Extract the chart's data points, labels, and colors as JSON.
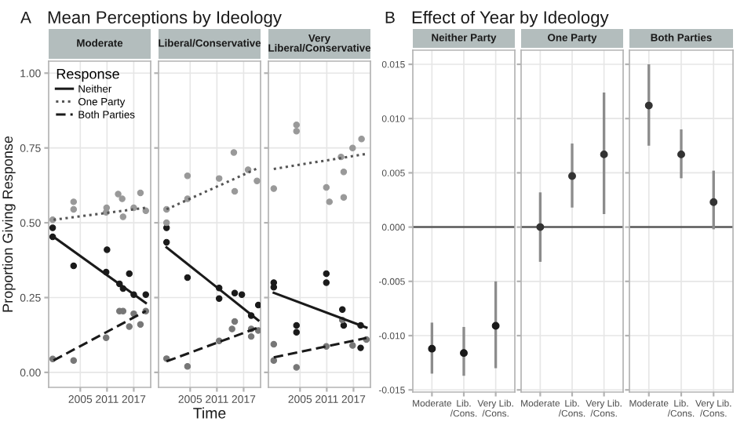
{
  "chart_data": [
    {
      "type": "scatter",
      "title": "Moderate",
      "annotations": [
        "A",
        "Mean Perceptions by Ideology"
      ],
      "ylabel": "Proportion Giving Response",
      "legend": "top left",
      "legend_title": "Response",
      "xlim": [
        1997.9,
        2020.8
      ],
      "ylim": [
        -0.05,
        1.04
      ],
      "xticks": [
        2005,
        2011,
        2017
      ],
      "yticks": [
        {
          "value": 0,
          "label": "0.00"
        },
        {
          "value": 0.25,
          "label": "0.25"
        },
        {
          "value": 0.5,
          "label": "0.50"
        },
        {
          "value": 0.75,
          "label": "0.75"
        },
        {
          "value": 1,
          "label": "1.00"
        }
      ],
      "grid": true,
      "series": [
        {
          "type": "scatter",
          "marker": "circle",
          "color": "#1a1a1a",
          "x": [
            1998.8,
            1998.8,
            2003.5,
            2011,
            2010.8,
            2013.8,
            2016,
            2017,
            2019.7,
            2014.6
          ],
          "values": [
            0.483,
            0.453,
            0.356,
            0.41,
            0.335,
            0.296,
            0.33,
            0.26,
            0.26,
            0.28
          ]
        },
        {
          "type": "scatter",
          "marker": "circle",
          "color": "#999999",
          "x": [
            2003.5,
            2003.5,
            2013.5,
            2014.4,
            2018.5,
            2010.9,
            2014.6,
            2010.8,
            2017,
            2019.7,
            1998.8
          ],
          "values": [
            0.57,
            0.545,
            0.596,
            0.58,
            0.6,
            0.55,
            0.52,
            0.535,
            0.55,
            0.54,
            0.51
          ]
        },
        {
          "type": "scatter",
          "marker": "circle",
          "color": "#777777",
          "x": [
            1998.8,
            2003.5,
            2010.8,
            2013.8,
            2014.6,
            2016,
            2017,
            2018.5,
            2019.7
          ],
          "values": [
            0.045,
            0.04,
            0.116,
            0.205,
            0.205,
            0.153,
            0.196,
            0.16,
            0.205
          ]
        },
        {
          "type": "line",
          "name": "Neither",
          "color": "#1a1a1a",
          "line_style": "solid",
          "x": [
            1999,
            2019.7
          ],
          "values": [
            0.453,
            0.232
          ]
        },
        {
          "type": "line",
          "name": "One Party",
          "color": "#555555",
          "line_style": "dotted",
          "x": [
            1999,
            2019.7
          ],
          "values": [
            0.51,
            0.55
          ]
        },
        {
          "type": "line",
          "name": "Both Parties",
          "color": "#1a1a1a",
          "line_style": "dashed",
          "x": [
            1999,
            2019.7
          ],
          "values": [
            0.04,
            0.205
          ]
        }
      ]
    },
    {
      "type": "scatter",
      "title": "Liberal/Conservative",
      "xlabel": "Time",
      "tick_labels": "x",
      "xlim": [
        1997.9,
        2020.8
      ],
      "ylim": [
        -0.05,
        1.04
      ],
      "xticks": [
        2005,
        2011,
        2017
      ],
      "yticks": [
        {
          "value": 0,
          "label": null
        },
        {
          "value": 0.25,
          "label": null
        },
        {
          "value": 0.5,
          "label": null
        },
        {
          "value": 0.75,
          "label": null
        },
        {
          "value": 1,
          "label": null
        }
      ],
      "grid": true,
      "series": [
        {
          "type": "scatter",
          "marker": "circle",
          "color": "#1a1a1a",
          "x": [
            1999.7,
            1999.7,
            2004.4,
            2011.5,
            2011.5,
            2015,
            2016.6,
            2020.3,
            2018.7
          ],
          "values": [
            0.483,
            0.435,
            0.317,
            0.282,
            0.247,
            0.265,
            0.26,
            0.225,
            0.19
          ]
        },
        {
          "type": "scatter",
          "marker": "circle",
          "color": "#999999",
          "x": [
            2004.4,
            2014.8,
            2011.5,
            2015,
            2018,
            2020,
            2004.4,
            1999.7,
            1999.7
          ],
          "values": [
            0.657,
            0.735,
            0.648,
            0.605,
            0.677,
            0.64,
            0.58,
            0.545,
            0.5
          ]
        },
        {
          "type": "scatter",
          "marker": "circle",
          "color": "#777777",
          "x": [
            1999.7,
            2004.4,
            2011.5,
            2015,
            2014.4,
            2018.7,
            2020.3,
            2018.7
          ],
          "values": [
            0.046,
            0.02,
            0.105,
            0.17,
            0.145,
            0.145,
            0.14,
            0.12
          ]
        },
        {
          "type": "line",
          "color": "#1a1a1a",
          "line_style": "solid",
          "x": [
            1999.7,
            2020.3
          ],
          "values": [
            0.418,
            0.174
          ]
        },
        {
          "type": "line",
          "color": "#555555",
          "line_style": "dotted",
          "x": [
            1999.7,
            2020.3
          ],
          "values": [
            0.545,
            0.683
          ]
        },
        {
          "type": "line",
          "color": "#1a1a1a",
          "line_style": "dashed",
          "x": [
            1999.7,
            2020.3
          ],
          "values": [
            0.037,
            0.15
          ]
        }
      ]
    },
    {
      "type": "scatter",
      "title": "Very\nLiberal/Conservative",
      "tick_labels": "x",
      "xlim": [
        1997.9,
        2020.8
      ],
      "ylim": [
        -0.05,
        1.04
      ],
      "xticks": [
        2005,
        2011,
        2017
      ],
      "yticks": [
        {
          "value": 0,
          "label": null
        },
        {
          "value": 0.25,
          "label": null
        },
        {
          "value": 0.5,
          "label": null
        },
        {
          "value": 0.75,
          "label": null
        },
        {
          "value": 1,
          "label": null
        }
      ],
      "grid": true,
      "series": [
        {
          "type": "scatter",
          "marker": "circle",
          "color": "#1a1a1a",
          "x": [
            1999.1,
            1999.1,
            2004.2,
            2004.2,
            2010.9,
            2010.9,
            2014.5,
            2014.8,
            2018.6,
            2018.6
          ],
          "values": [
            0.3,
            0.285,
            0.157,
            0.134,
            0.33,
            0.3,
            0.21,
            0.157,
            0.157,
            0.082
          ]
        },
        {
          "type": "scatter",
          "marker": "circle",
          "color": "#999999",
          "x": [
            2004.2,
            2004.2,
            1999.1,
            2010.9,
            2011.6,
            2014.2,
            2014.8,
            2014.8,
            2016.8,
            2018.8
          ],
          "values": [
            0.827,
            0.806,
            0.614,
            0.618,
            0.57,
            0.72,
            0.67,
            0.585,
            0.75,
            0.78
          ]
        },
        {
          "type": "scatter",
          "marker": "circle",
          "color": "#777777",
          "x": [
            1999.1,
            1999.1,
            2004.2,
            2010.9,
            2014.5,
            2016.8,
            2019.9
          ],
          "values": [
            0.094,
            0.04,
            0.017,
            0.087,
            0.175,
            0.09,
            0.11
          ]
        },
        {
          "type": "line",
          "color": "#1a1a1a",
          "line_style": "solid",
          "x": [
            1999.1,
            2019.9
          ],
          "values": [
            0.266,
            0.15
          ]
        },
        {
          "type": "line",
          "color": "#555555",
          "line_style": "dotted",
          "x": [
            1999.1,
            2019.9
          ],
          "values": [
            0.68,
            0.73
          ]
        },
        {
          "type": "line",
          "color": "#1a1a1a",
          "line_style": "dashed",
          "x": [
            1999.1,
            2019.9
          ],
          "values": [
            0.05,
            0.115
          ]
        }
      ]
    },
    {
      "type": "scatter",
      "title": "Neither Party",
      "annotations": [
        "B",
        "Effect of Year by Ideology"
      ],
      "categories": [
        "Moderate",
        "Lib.\n/Cons.",
        "Very Lib.\n/Cons."
      ],
      "ylim": [
        -0.0152,
        0.0163
      ],
      "yticks": [
        {
          "value": -0.015,
          "label": "-0.015"
        },
        {
          "value": -0.01,
          "label": "-0.010"
        },
        {
          "value": -0.005,
          "label": "-0.005"
        },
        {
          "value": 0,
          "label": "0.000"
        },
        {
          "value": 0.005,
          "label": "0.005"
        },
        {
          "value": 0.01,
          "label": "0.010"
        },
        {
          "value": 0.015,
          "label": "0.015"
        }
      ],
      "grid": true,
      "marker": "circle",
      "ref_lines": [
        {
          "axis": "y",
          "value": 0,
          "color": "#595959"
        }
      ],
      "series": [
        {
          "color": "#1a1a1a",
          "values": [
            -0.0112,
            -0.0116,
            -0.0091
          ],
          "errors": [
            [
              -0.0135,
              -0.0088
            ],
            [
              -0.0137,
              -0.0092
            ],
            [
              -0.013,
              -0.005
            ]
          ]
        }
      ]
    },
    {
      "type": "scatter",
      "title": "One Party",
      "tick_labels": "x",
      "categories": [
        "Moderate",
        "Lib.\n/Cons.",
        "Very Lib.\n/Cons."
      ],
      "ylim": [
        -0.0152,
        0.0163
      ],
      "yticks": [
        {
          "value": -0.015,
          "label": null
        },
        {
          "value": -0.01,
          "label": null
        },
        {
          "value": -0.005,
          "label": null
        },
        {
          "value": 0,
          "label": null
        },
        {
          "value": 0.005,
          "label": null
        },
        {
          "value": 0.01,
          "label": null
        },
        {
          "value": 0.015,
          "label": null
        }
      ],
      "grid": true,
      "marker": "circle",
      "ref_lines": [
        {
          "axis": "y",
          "value": 0,
          "color": "#595959"
        }
      ],
      "series": [
        {
          "color": "#333333",
          "values": [
            0.0,
            0.0047,
            0.0067
          ],
          "errors": [
            [
              -0.0032,
              0.0032
            ],
            [
              0.0018,
              0.0077
            ],
            [
              0.0012,
              0.0124
            ]
          ]
        }
      ]
    },
    {
      "type": "scatter",
      "title": "Both Parties",
      "tick_labels": "x",
      "categories": [
        "Moderate",
        "Lib.\n/Cons.",
        "Very Lib.\n/Cons."
      ],
      "ylim": [
        -0.0152,
        0.0163
      ],
      "yticks": [
        {
          "value": -0.015,
          "label": null
        },
        {
          "value": -0.01,
          "label": null
        },
        {
          "value": -0.005,
          "label": null
        },
        {
          "value": 0,
          "label": null
        },
        {
          "value": 0.005,
          "label": null
        },
        {
          "value": 0.01,
          "label": null
        },
        {
          "value": 0.015,
          "label": null
        }
      ],
      "grid": true,
      "marker": "circle",
      "ref_lines": [
        {
          "axis": "y",
          "value": 0,
          "color": "#595959"
        }
      ],
      "series": [
        {
          "color": "#333333",
          "values": [
            0.0112,
            0.0067,
            0.0023
          ],
          "errors": [
            [
              0.0075,
              0.015
            ],
            [
              0.0045,
              0.009
            ],
            [
              -0.0002,
              0.0052
            ]
          ]
        }
      ]
    }
  ]
}
